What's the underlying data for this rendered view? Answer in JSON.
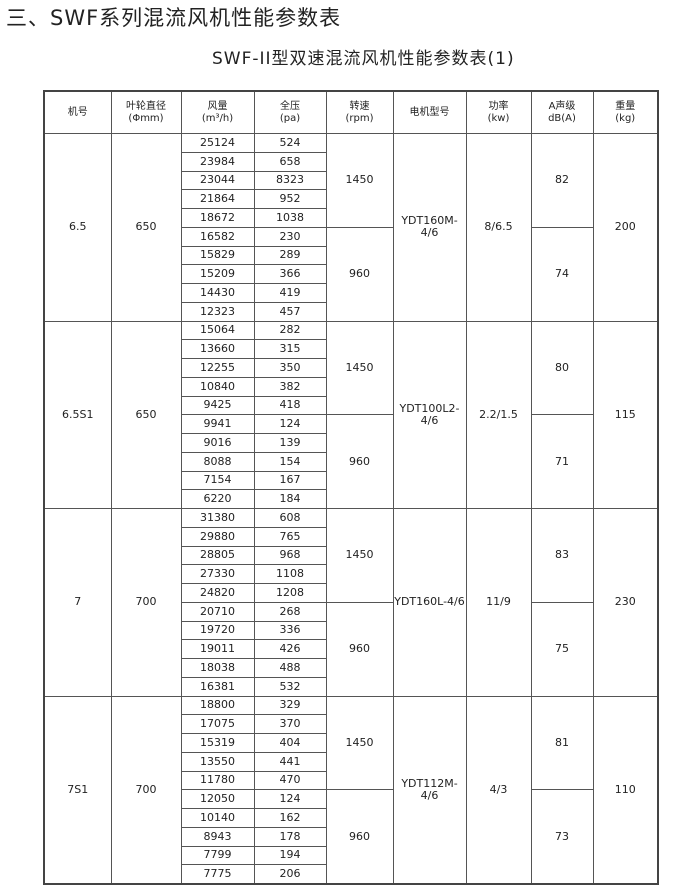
{
  "title": "三、SWF系列混流风机性能参数表",
  "subtitle": "SWF-II型双速混流风机性能参数表(1)",
  "headers": [
    {
      "l1": "机号",
      "l2": ""
    },
    {
      "l1": "叶轮直径",
      "l2": "(Φmm)"
    },
    {
      "l1": "风量",
      "l2": "(m³/h)"
    },
    {
      "l1": "全压",
      "l2": "(pa)"
    },
    {
      "l1": "转速",
      "l2": "(rpm)"
    },
    {
      "l1": "电机型号",
      "l2": ""
    },
    {
      "l1": "功率",
      "l2": "(kw)"
    },
    {
      "l1": "A声级",
      "l2": "dB(A)"
    },
    {
      "l1": "重量",
      "l2": "(kg)"
    }
  ],
  "groups": [
    {
      "model": "6.5",
      "diameter": "650",
      "motor": "YDT160M-4/6",
      "power": "8/6.5",
      "weight": "200",
      "speeds": [
        {
          "rpm": "1450",
          "db": "82",
          "rows": [
            [
              "25124",
              "524"
            ],
            [
              "23984",
              "658"
            ],
            [
              "23044",
              "8323"
            ],
            [
              "21864",
              "952"
            ],
            [
              "18672",
              "1038"
            ]
          ]
        },
        {
          "rpm": "960",
          "db": "74",
          "rows": [
            [
              "16582",
              "230"
            ],
            [
              "15829",
              "289"
            ],
            [
              "15209",
              "366"
            ],
            [
              "14430",
              "419"
            ],
            [
              "12323",
              "457"
            ]
          ]
        }
      ]
    },
    {
      "model": "6.5S1",
      "diameter": "650",
      "motor": "YDT100L2-4/6",
      "power": "2.2/1.5",
      "weight": "115",
      "speeds": [
        {
          "rpm": "1450",
          "db": "80",
          "rows": [
            [
              "15064",
              "282"
            ],
            [
              "13660",
              "315"
            ],
            [
              "12255",
              "350"
            ],
            [
              "10840",
              "382"
            ],
            [
              "9425",
              "418"
            ]
          ]
        },
        {
          "rpm": "960",
          "db": "71",
          "rows": [
            [
              "9941",
              "124"
            ],
            [
              "9016",
              "139"
            ],
            [
              "8088",
              "154"
            ],
            [
              "7154",
              "167"
            ],
            [
              "6220",
              "184"
            ]
          ]
        }
      ]
    },
    {
      "model": "7",
      "diameter": "700",
      "motor": "YDT160L-4/6",
      "power": "11/9",
      "weight": "230",
      "speeds": [
        {
          "rpm": "1450",
          "db": "83",
          "rows": [
            [
              "31380",
              "608"
            ],
            [
              "29880",
              "765"
            ],
            [
              "28805",
              "968"
            ],
            [
              "27330",
              "1108"
            ],
            [
              "24820",
              "1208"
            ]
          ]
        },
        {
          "rpm": "960",
          "db": "75",
          "rows": [
            [
              "20710",
              "268"
            ],
            [
              "19720",
              "336"
            ],
            [
              "19011",
              "426"
            ],
            [
              "18038",
              "488"
            ],
            [
              "16381",
              "532"
            ]
          ]
        }
      ]
    },
    {
      "model": "7S1",
      "diameter": "700",
      "motor": "YDT112M-4/6",
      "power": "4/3",
      "weight": "110",
      "speeds": [
        {
          "rpm": "1450",
          "db": "81",
          "rows": [
            [
              "18800",
              "329"
            ],
            [
              "17075",
              "370"
            ],
            [
              "15319",
              "404"
            ],
            [
              "13550",
              "441"
            ],
            [
              "11780",
              "470"
            ]
          ]
        },
        {
          "rpm": "960",
          "db": "73",
          "rows": [
            [
              "12050",
              "124"
            ],
            [
              "10140",
              "162"
            ],
            [
              "8943",
              "178"
            ],
            [
              "7799",
              "194"
            ],
            [
              "7775",
              "206"
            ]
          ]
        }
      ]
    }
  ]
}
